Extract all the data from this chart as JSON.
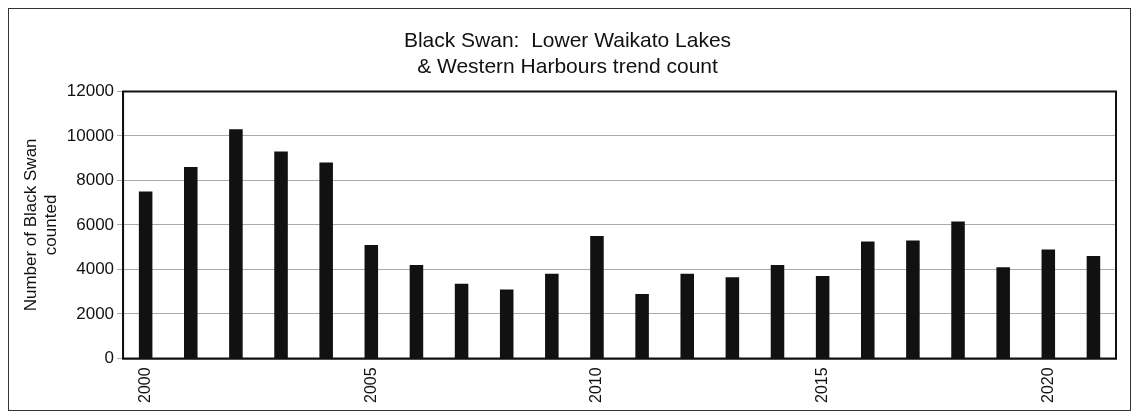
{
  "chart_data": {
    "type": "bar",
    "title": "Black Swan:  Lower Waikato Lakes\n& Western Harbours trend count",
    "ylabel": "Number of Black Swan\ncounted",
    "categories": [
      "2000",
      null,
      null,
      null,
      null,
      "2005",
      null,
      null,
      null,
      null,
      "2010",
      null,
      null,
      null,
      null,
      "2015",
      null,
      null,
      null,
      null,
      "2020",
      null
    ],
    "values": [
      7500,
      8600,
      10300,
      9300,
      8800,
      5100,
      4200,
      3350,
      3100,
      3800,
      5500,
      2900,
      3800,
      3650,
      4200,
      3700,
      5250,
      5300,
      6150,
      4100,
      4900,
      4600
    ],
    "color": "#111111",
    "ylim": [
      0,
      12000
    ],
    "yticks": [
      0,
      2000,
      4000,
      6000,
      8000,
      10000,
      12000
    ],
    "grid": "y",
    "legend": false
  }
}
